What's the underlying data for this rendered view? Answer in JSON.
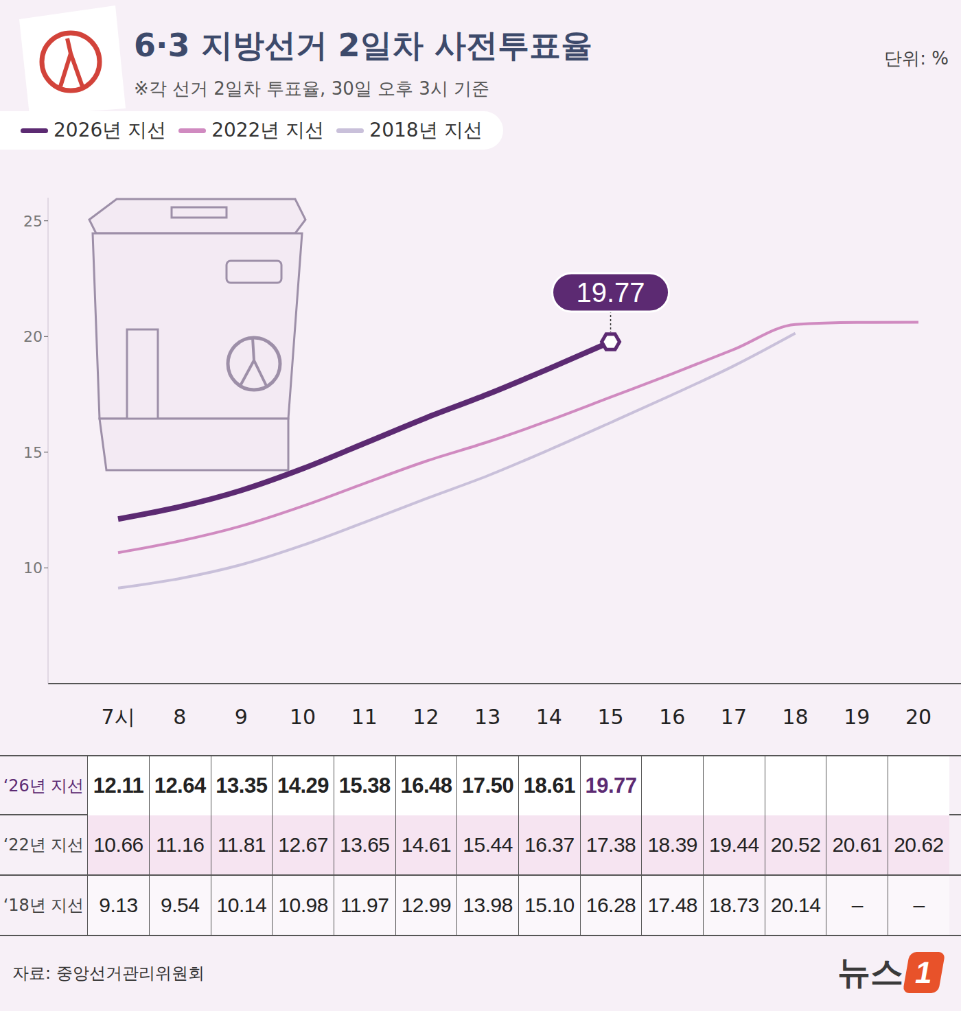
{
  "chart_data": {
    "type": "line",
    "title": "6·3 지방선거 2일차 사전투표율",
    "subtitle": "※각 선거 2일차 투표율, 30일 오후 3시 기준",
    "unit_label": "단위: %",
    "source": "자료: 중앙선거관리위원회",
    "logo": {
      "text": "뉴스",
      "badge": "1"
    },
    "categories": [
      "7시",
      "8",
      "9",
      "10",
      "11",
      "12",
      "13",
      "14",
      "15",
      "16",
      "17",
      "18",
      "19",
      "20"
    ],
    "series": [
      {
        "name": "2026년 지선",
        "table_label": "‘26년 지선",
        "color": "#5c2a72",
        "values": [
          12.11,
          12.64,
          13.35,
          14.29,
          15.38,
          16.48,
          17.5,
          18.61,
          19.77,
          null,
          null,
          null,
          null,
          null
        ],
        "value_labels": [
          "12.11",
          "12.64",
          "13.35",
          "14.29",
          "15.38",
          "16.48",
          "17.50",
          "18.61",
          "19.77",
          null,
          null,
          null,
          null,
          null
        ]
      },
      {
        "name": "2022년 지선",
        "table_label": "‘22년 지선",
        "color": "#d08ac0",
        "values": [
          10.66,
          11.16,
          11.81,
          12.67,
          13.65,
          14.61,
          15.44,
          16.37,
          17.38,
          18.39,
          19.44,
          20.52,
          20.61,
          20.62
        ],
        "value_labels": [
          "10.66",
          "11.16",
          "11.81",
          "12.67",
          "13.65",
          "14.61",
          "15.44",
          "16.37",
          "17.38",
          "18.39",
          "19.44",
          "20.52",
          "20.61",
          "20.62"
        ]
      },
      {
        "name": "2018년 지선",
        "table_label": "‘18년 지선",
        "color": "#c9c0da",
        "values": [
          9.13,
          9.54,
          10.14,
          10.98,
          11.97,
          12.99,
          13.98,
          15.1,
          16.28,
          17.48,
          18.73,
          20.14,
          null,
          null
        ],
        "value_labels": [
          "9.13",
          "9.54",
          "10.14",
          "10.98",
          "11.97",
          "12.99",
          "13.98",
          "15.10",
          "16.28",
          "17.48",
          "18.73",
          "20.14",
          "–",
          "–"
        ]
      }
    ],
    "ylim": [
      5,
      26
    ],
    "yticks": [
      10,
      15,
      20,
      25
    ],
    "grid": false,
    "legend": "top-left",
    "annotations": [
      {
        "series": "2026년 지선",
        "x": "15",
        "label": "19.77"
      }
    ]
  }
}
